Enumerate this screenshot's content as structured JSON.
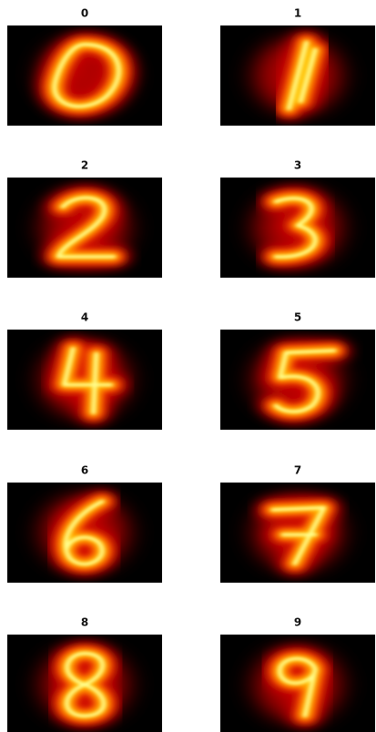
{
  "panels": [
    {
      "title": "0"
    },
    {
      "title": "1"
    },
    {
      "title": "2"
    },
    {
      "title": "3"
    },
    {
      "title": "4"
    },
    {
      "title": "5"
    },
    {
      "title": "6"
    },
    {
      "title": "7"
    },
    {
      "title": "8"
    },
    {
      "title": "9"
    }
  ]
}
